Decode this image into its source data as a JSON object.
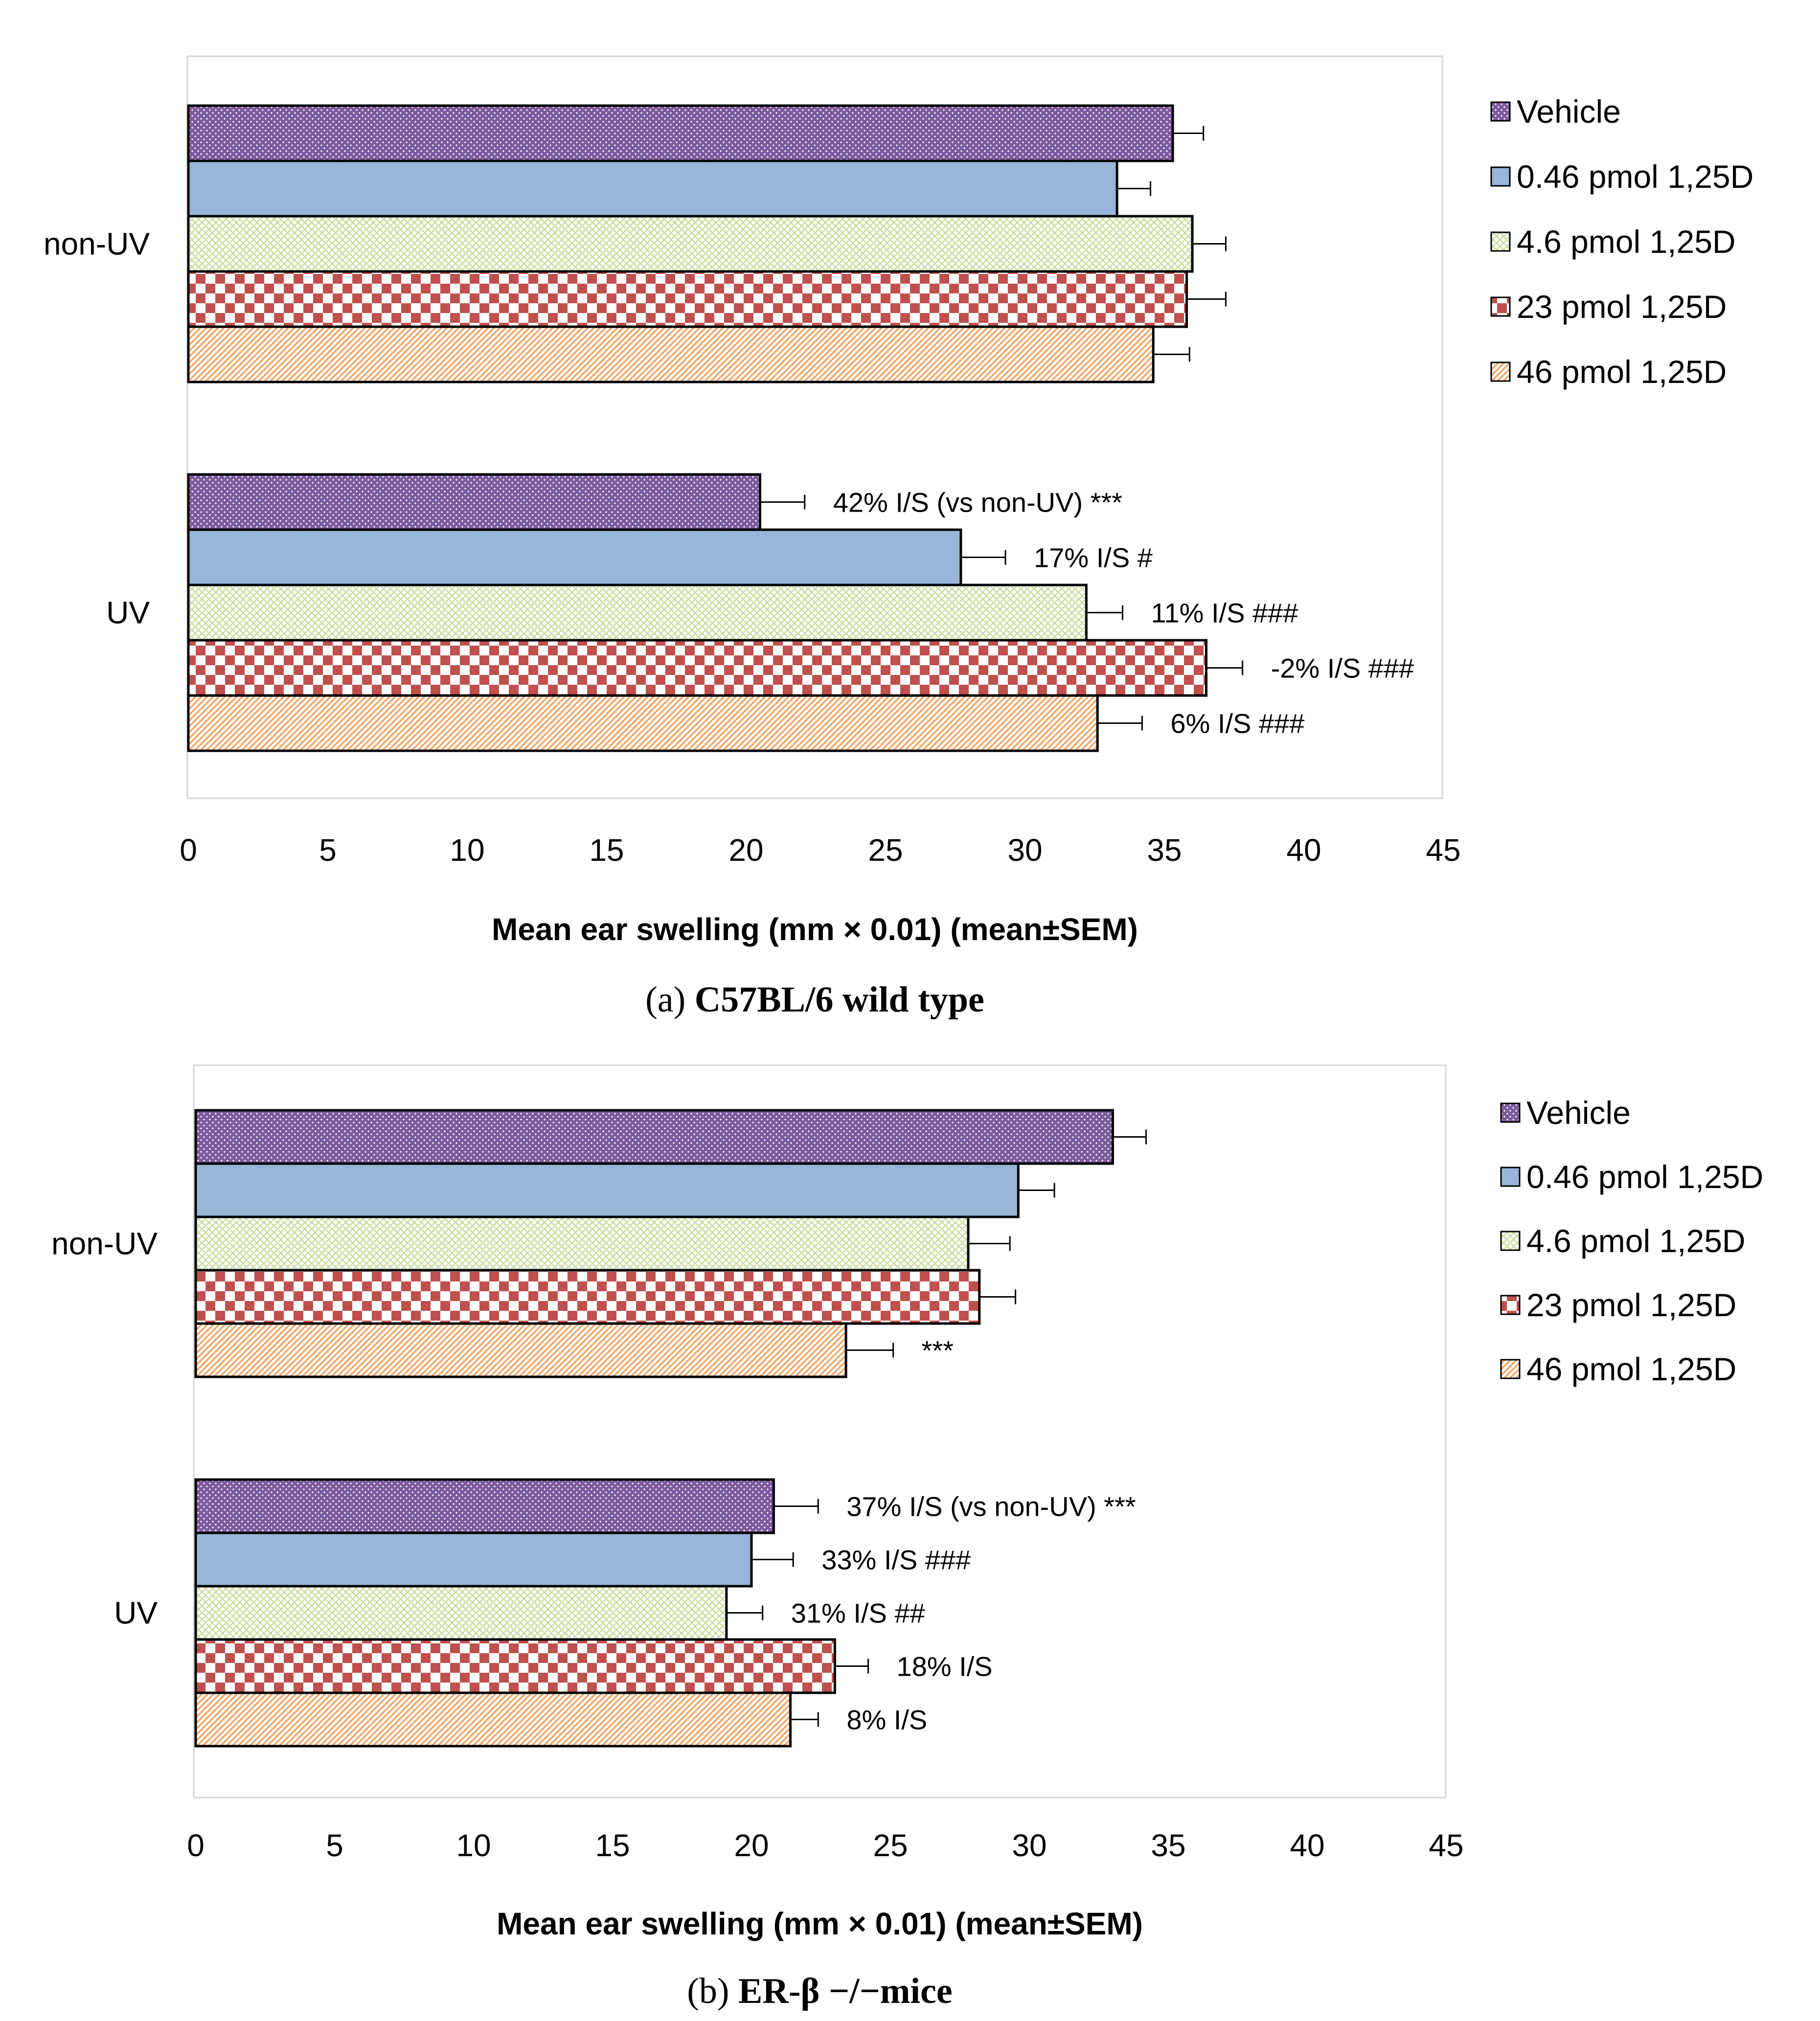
{
  "colors": {
    "vehicle": "#7d5a9e",
    "p046": "#97b6d8",
    "p46": "#c8dc9a",
    "p23": "#c0504d",
    "p46b": "#f1a260"
  },
  "chart_data": [
    {
      "type": "bar",
      "orientation": "horizontal",
      "caption_prefix": "(a)",
      "caption_text": "C57BL/6 wild type",
      "xlabel": "Mean ear swelling (mm × 0.01) (mean±SEM)",
      "xlim": [
        0,
        45
      ],
      "xticks": [
        "0",
        "5",
        "10",
        "15",
        "20",
        "25",
        "30",
        "35",
        "40",
        "45"
      ],
      "legend_position": "right",
      "legend": [
        "Vehicle",
        "0.46 pmol 1,25D",
        "4.6 pmol 1,25D",
        "23 pmol 1,25D",
        "46 pmol 1,25D"
      ],
      "categories": [
        "non-UV",
        "UV"
      ],
      "series": [
        {
          "name": "Vehicle",
          "values": [
            35.3,
            20.5
          ],
          "errors": [
            1.1,
            1.6
          ]
        },
        {
          "name": "0.46 pmol 1,25D",
          "values": [
            33.3,
            27.7
          ],
          "errors": [
            1.2,
            1.6
          ]
        },
        {
          "name": "4.6 pmol 1,25D",
          "values": [
            36.0,
            32.2
          ],
          "errors": [
            1.2,
            1.3
          ]
        },
        {
          "name": "23 pmol 1,25D",
          "values": [
            35.8,
            36.5
          ],
          "errors": [
            1.4,
            1.3
          ]
        },
        {
          "name": "46 pmol 1,25D",
          "values": [
            34.6,
            32.6
          ],
          "errors": [
            1.3,
            1.6
          ]
        }
      ],
      "annotations": [
        [
          "",
          "",
          "",
          "",
          ""
        ],
        [
          "42% I/S (vs non-UV) ***",
          "17% I/S #",
          "11% I/S ###",
          "-2% I/S ###",
          "6% I/S ###"
        ]
      ]
    },
    {
      "type": "bar",
      "orientation": "horizontal",
      "caption_prefix": "(b)",
      "caption_text": "ER-β −/−mice",
      "xlabel": "Mean ear swelling (mm × 0.01) (mean±SEM)",
      "xlim": [
        0,
        45
      ],
      "xticks": [
        "0",
        "5",
        "10",
        "15",
        "20",
        "25",
        "30",
        "35",
        "40",
        "45"
      ],
      "legend_position": "right",
      "legend": [
        "Vehicle",
        "0.46 pmol 1,25D",
        "4.6 pmol 1,25D",
        "23 pmol 1,25D",
        "46 pmol 1,25D"
      ],
      "categories": [
        "non-UV",
        "UV"
      ],
      "series": [
        {
          "name": "Vehicle",
          "values": [
            33.0,
            20.8
          ],
          "errors": [
            1.2,
            1.6
          ]
        },
        {
          "name": "0.46 pmol 1,25D",
          "values": [
            29.6,
            20.0
          ],
          "errors": [
            1.3,
            1.5
          ]
        },
        {
          "name": "4.6 pmol 1,25D",
          "values": [
            27.8,
            19.1
          ],
          "errors": [
            1.5,
            1.3
          ]
        },
        {
          "name": "23 pmol 1,25D",
          "values": [
            28.2,
            23.0
          ],
          "errors": [
            1.3,
            1.2
          ]
        },
        {
          "name": "46 pmol 1,25D",
          "values": [
            23.4,
            21.4
          ],
          "errors": [
            1.7,
            1.0
          ]
        }
      ],
      "annotations": [
        [
          "",
          "",
          "",
          "",
          "***"
        ],
        [
          "37% I/S (vs non-UV) ***",
          "33% I/S ###",
          "31% I/S ##",
          "18% I/S",
          "8% I/S"
        ]
      ]
    }
  ]
}
